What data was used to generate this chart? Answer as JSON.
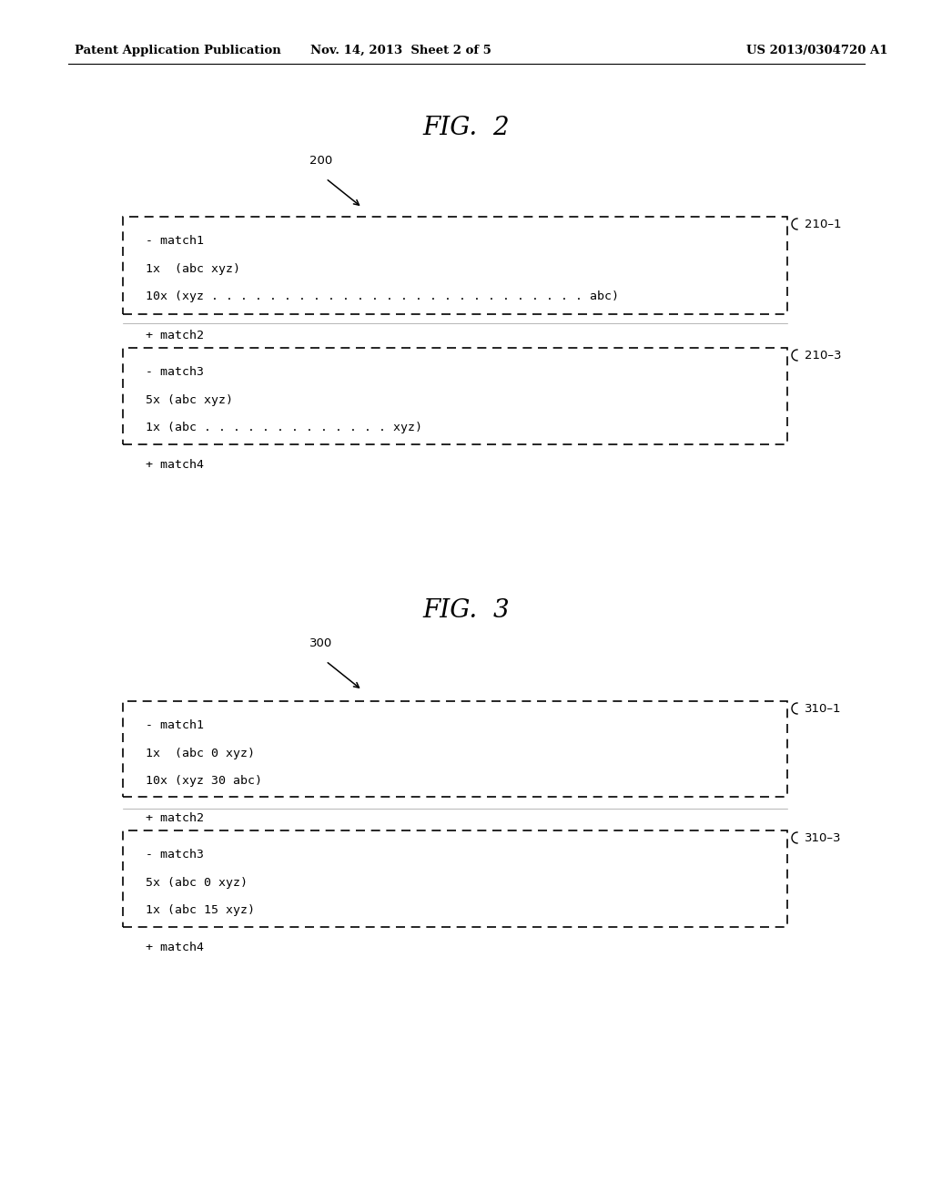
{
  "fig_width": 10.24,
  "fig_height": 13.2,
  "bg_color": "#ffffff",
  "header_left": "Patent Application Publication",
  "header_mid": "Nov. 14, 2013  Sheet 2 of 5",
  "header_right": "US 2013/0304720 A1",
  "fig2_title": "FIG.  2",
  "fig2_label": "200",
  "fig3_title": "FIG.  3",
  "fig3_label": "300",
  "fig2": {
    "box1_label": "210–1",
    "box1_lines": [
      "- match1",
      "1x  (abc xyz)",
      "10x (xyz . . . . . . . . . . . . . . . . . . . . . . . . . . abc)"
    ],
    "between_label": "+ match2",
    "box2_label": "210–3",
    "box2_lines": [
      "- match3",
      "5x (abc xyz)",
      "1x (abc . . . . . . . . . . . . . xyz)"
    ],
    "after_label": "+ match4"
  },
  "fig3": {
    "box1_label": "310–1",
    "box1_lines": [
      "- match1",
      "1x  (abc 0 xyz)",
      "10x (xyz 30 abc)"
    ],
    "between_label": "+ match2",
    "box2_label": "310–3",
    "box2_lines": [
      "- match3",
      "5x (abc 0 xyz)",
      "1x (abc 15 xyz)"
    ],
    "after_label": "+ match4"
  }
}
